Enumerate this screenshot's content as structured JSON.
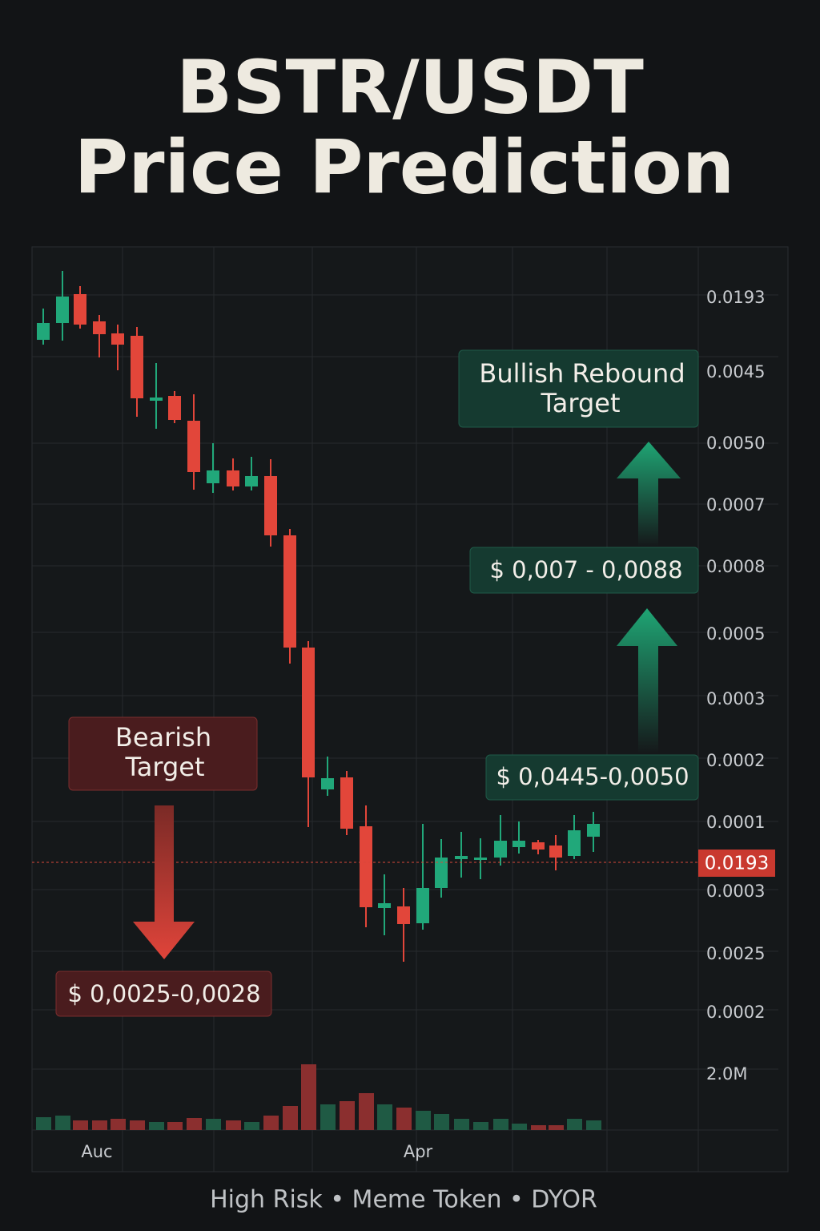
{
  "header": {
    "title_lines": [
      "BSTR/USDT",
      "Price Prediction"
    ]
  },
  "axis": {
    "price_labels": [
      "0.0193",
      "0.0045",
      "0.0050",
      "0.0007",
      "0.0008",
      "0.0005",
      "0.0003",
      "0.0002",
      "0.0001",
      "0.0003",
      "0.0025",
      "0.0002"
    ],
    "volume_label": "2.0M",
    "current_price": "0.0193",
    "time_labels": [
      "Auc",
      "Apr"
    ]
  },
  "bearish": {
    "title_lines": [
      "Bearish",
      "Target"
    ],
    "range": "$ 0,0025-0,0028"
  },
  "bullish": {
    "title_lines": [
      "Bullish Rebound",
      "Target"
    ],
    "range_high": "$ 0,007 - 0,0088",
    "range_low": "$ 0,0445-0,0050"
  },
  "footer": "High Risk • Meme Token • DYOR"
}
